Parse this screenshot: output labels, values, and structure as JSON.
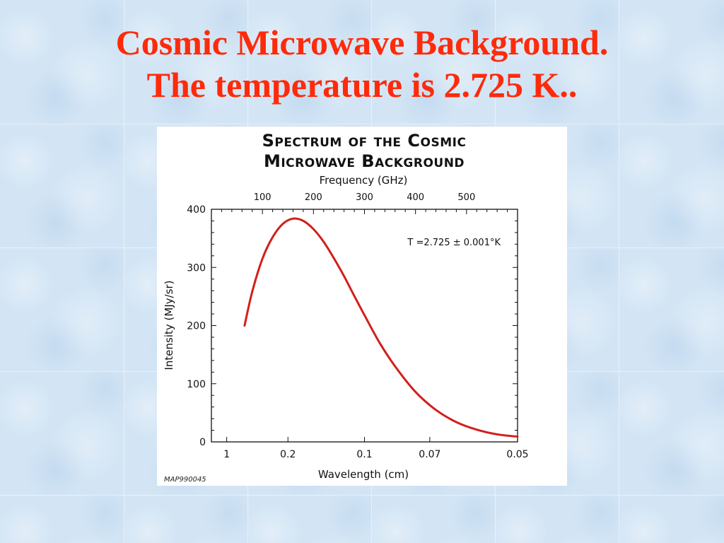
{
  "slide": {
    "title_line1": "Cosmic Microwave Background.",
    "title_line2": "The temperature is 2.725 K.."
  },
  "colors": {
    "title": "#ff2a0a",
    "curve": "#d21f1b",
    "background": "#d3e5f5"
  },
  "figure": {
    "credit": "MAP990045"
  },
  "chart_data": {
    "type": "line",
    "title_line1": "Spectrum of the Cosmic",
    "title_line2": "Microwave Background",
    "xlabel": "Wavelength (cm)",
    "ylabel": "Intensity (MJy/sr)",
    "top_axis_label": "Frequency (GHz)",
    "annotation": "T =2.725 ± 0.001°K",
    "x_unit": "GHz",
    "xlim": [
      0,
      600
    ],
    "ylim": [
      0,
      400
    ],
    "y_ticks": [
      0,
      100,
      200,
      300,
      400
    ],
    "top_ticks": [
      {
        "value": 100,
        "label": "100"
      },
      {
        "value": 200,
        "label": "200"
      },
      {
        "value": 300,
        "label": "300"
      },
      {
        "value": 400,
        "label": "400"
      },
      {
        "value": 500,
        "label": "500"
      }
    ],
    "bottom_ticks": [
      {
        "value": 30,
        "label": "1"
      },
      {
        "value": 150,
        "label": "0.2"
      },
      {
        "value": 300,
        "label": "0.1"
      },
      {
        "value": 428,
        "label": "0.07"
      },
      {
        "value": 600,
        "label": "0.05"
      }
    ],
    "grid": false,
    "series": [
      {
        "x": [
          65,
          80,
          100,
          120,
          140,
          160,
          180,
          200,
          220,
          240,
          260,
          280,
          300,
          330,
          360,
          400,
          440,
          480,
          520,
          560,
          600
        ],
        "y": [
          200,
          258,
          315,
          352,
          375,
          384,
          380,
          366,
          344,
          316,
          285,
          251,
          218,
          170,
          130,
          86,
          55,
          34,
          21,
          13,
          9
        ]
      }
    ]
  }
}
